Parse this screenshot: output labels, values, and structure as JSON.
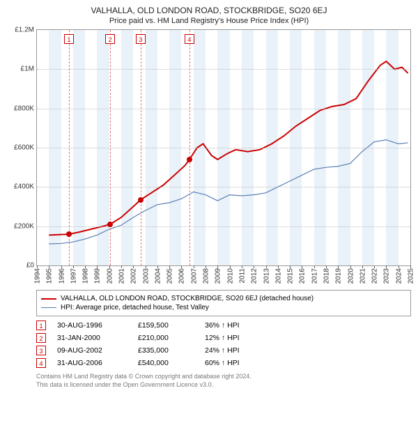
{
  "title": "VALHALLA, OLD LONDON ROAD, STOCKBRIDGE, SO20 6EJ",
  "subtitle": "Price paid vs. HM Land Registry's House Price Index (HPI)",
  "chart": {
    "type": "line",
    "background_color": "#ffffff",
    "grid_color": "#bbbbbb",
    "border_color": "#999999",
    "xlim": [
      1994,
      2025
    ],
    "ylim": [
      0,
      1200000
    ],
    "yticks": [
      0,
      200000,
      400000,
      600000,
      800000,
      1000000,
      1200000
    ],
    "ytick_labels": [
      "£0",
      "£200K",
      "£400K",
      "£600K",
      "£800K",
      "£1M",
      "£1.2M"
    ],
    "xticks": [
      1994,
      1995,
      1996,
      1997,
      1998,
      1999,
      2000,
      2001,
      2002,
      2003,
      2004,
      2005,
      2006,
      2007,
      2008,
      2009,
      2010,
      2011,
      2012,
      2013,
      2014,
      2015,
      2016,
      2017,
      2018,
      2019,
      2020,
      2021,
      2022,
      2023,
      2024,
      2025
    ],
    "band_color": "#eaf2f9",
    "bands_alternate_start": 1995,
    "marker_line_color": "#e07a7a",
    "marker_box_border": "#cc0000",
    "marker_box_text": "#cc0000",
    "dot_color": "#cc0000",
    "label_fontsize": 10,
    "series": {
      "property": {
        "label": "VALHALLA, OLD LONDON ROAD, STOCKBRIDGE, SO20 6EJ (detached house)",
        "color": "#cc0000",
        "width": 2,
        "data": [
          [
            1995.0,
            155000
          ],
          [
            1996.66,
            159500
          ],
          [
            1997.5,
            170000
          ],
          [
            1998.5,
            185000
          ],
          [
            1999.5,
            200000
          ],
          [
            2000.08,
            210000
          ],
          [
            2001.0,
            245000
          ],
          [
            2002.0,
            300000
          ],
          [
            2002.61,
            335000
          ],
          [
            2003.5,
            370000
          ],
          [
            2004.5,
            410000
          ],
          [
            2005.5,
            465000
          ],
          [
            2006.3,
            510000
          ],
          [
            2006.66,
            540000
          ],
          [
            2007.3,
            600000
          ],
          [
            2007.8,
            620000
          ],
          [
            2008.5,
            560000
          ],
          [
            2009.0,
            540000
          ],
          [
            2009.8,
            570000
          ],
          [
            2010.5,
            590000
          ],
          [
            2011.5,
            580000
          ],
          [
            2012.5,
            590000
          ],
          [
            2013.5,
            620000
          ],
          [
            2014.5,
            660000
          ],
          [
            2015.5,
            710000
          ],
          [
            2016.5,
            750000
          ],
          [
            2017.5,
            790000
          ],
          [
            2018.5,
            810000
          ],
          [
            2019.5,
            820000
          ],
          [
            2020.5,
            850000
          ],
          [
            2021.5,
            940000
          ],
          [
            2022.5,
            1020000
          ],
          [
            2023.0,
            1040000
          ],
          [
            2023.7,
            1000000
          ],
          [
            2024.3,
            1010000
          ],
          [
            2024.8,
            980000
          ]
        ]
      },
      "hpi": {
        "label": "HPI: Average price, detached house, Test Valley",
        "color": "#5a7fb5",
        "width": 1.2,
        "data": [
          [
            1995.0,
            110000
          ],
          [
            1996.0,
            112000
          ],
          [
            1997.0,
            120000
          ],
          [
            1998.0,
            135000
          ],
          [
            1999.0,
            155000
          ],
          [
            2000.0,
            185000
          ],
          [
            2001.0,
            205000
          ],
          [
            2002.0,
            245000
          ],
          [
            2003.0,
            280000
          ],
          [
            2004.0,
            310000
          ],
          [
            2005.0,
            320000
          ],
          [
            2006.0,
            340000
          ],
          [
            2007.0,
            375000
          ],
          [
            2008.0,
            360000
          ],
          [
            2009.0,
            330000
          ],
          [
            2010.0,
            360000
          ],
          [
            2011.0,
            355000
          ],
          [
            2012.0,
            360000
          ],
          [
            2013.0,
            370000
          ],
          [
            2014.0,
            400000
          ],
          [
            2015.0,
            430000
          ],
          [
            2016.0,
            460000
          ],
          [
            2017.0,
            490000
          ],
          [
            2018.0,
            500000
          ],
          [
            2019.0,
            505000
          ],
          [
            2020.0,
            520000
          ],
          [
            2021.0,
            580000
          ],
          [
            2022.0,
            630000
          ],
          [
            2023.0,
            640000
          ],
          [
            2024.0,
            620000
          ],
          [
            2024.8,
            625000
          ]
        ]
      }
    },
    "markers": [
      {
        "n": "1",
        "x": 1996.66,
        "y": 159500
      },
      {
        "n": "2",
        "x": 2000.08,
        "y": 210000
      },
      {
        "n": "3",
        "x": 2002.61,
        "y": 335000
      },
      {
        "n": "4",
        "x": 2006.66,
        "y": 540000
      }
    ]
  },
  "legend": [
    {
      "color": "#cc0000",
      "width": 2,
      "text_path": "chart.series.property.label"
    },
    {
      "color": "#5a7fb5",
      "width": 1.2,
      "text_path": "chart.series.hpi.label"
    }
  ],
  "sales": [
    {
      "n": "1",
      "date": "30-AUG-1996",
      "price": "£159,500",
      "pct": "36% ↑ HPI"
    },
    {
      "n": "2",
      "date": "31-JAN-2000",
      "price": "£210,000",
      "pct": "12% ↑ HPI"
    },
    {
      "n": "3",
      "date": "09-AUG-2002",
      "price": "£335,000",
      "pct": "24% ↑ HPI"
    },
    {
      "n": "4",
      "date": "31-AUG-2006",
      "price": "£540,000",
      "pct": "60% ↑ HPI"
    }
  ],
  "footer_line1": "Contains HM Land Registry data © Crown copyright and database right 2024.",
  "footer_line2": "This data is licensed under the Open Government Licence v3.0."
}
